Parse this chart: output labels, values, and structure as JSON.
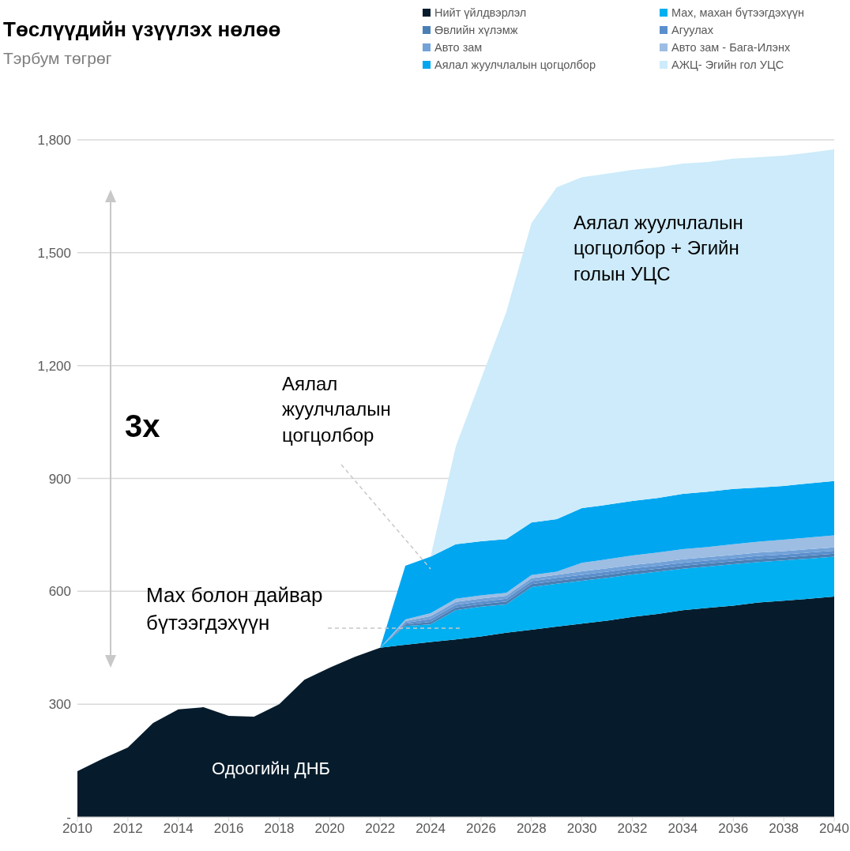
{
  "chart_data": {
    "type": "area",
    "stacked": true,
    "title": "Төслүүдийн үзүүлэх нөлөө",
    "subtitle": "Тэрбум төгрөг",
    "x": [
      2010,
      2011,
      2012,
      2013,
      2014,
      2015,
      2016,
      2017,
      2018,
      2019,
      2020,
      2021,
      2022,
      2023,
      2024,
      2025,
      2026,
      2027,
      2028,
      2029,
      2030,
      2031,
      2032,
      2033,
      2034,
      2035,
      2036,
      2037,
      2038,
      2039,
      2040
    ],
    "series": [
      {
        "name": "Нийт үйлдвэрлэл",
        "color": "#061c2c",
        "values": [
          122,
          155,
          185,
          250,
          286,
          292,
          269,
          267,
          300,
          365,
          397,
          426,
          450,
          458,
          465,
          472,
          480,
          490,
          498,
          506,
          514,
          522,
          532,
          540,
          550,
          556,
          562,
          570,
          575,
          580,
          586
        ]
      },
      {
        "name": "Мах, махан бүтээгдэхүүн",
        "color": "#00b0f0",
        "values": [
          null,
          null,
          null,
          null,
          null,
          null,
          null,
          null,
          null,
          null,
          null,
          null,
          0,
          50,
          47,
          78,
          79,
          75,
          113,
          114,
          114,
          114,
          113,
          112,
          110,
          110,
          110,
          108,
          107,
          107,
          106
        ]
      },
      {
        "name": "Өвлийн хүлэмж",
        "color": "#4a7fb5",
        "values": [
          null,
          null,
          null,
          null,
          null,
          null,
          null,
          null,
          null,
          null,
          null,
          null,
          0,
          4,
          7,
          7,
          7,
          8,
          8,
          8,
          8,
          8,
          8,
          8,
          8,
          8,
          8,
          8,
          8,
          8,
          8
        ]
      },
      {
        "name": "Агуулах",
        "color": "#5b8fcc",
        "values": [
          null,
          null,
          null,
          null,
          null,
          null,
          null,
          null,
          null,
          null,
          null,
          null,
          0,
          4,
          7,
          7,
          7,
          7,
          8,
          8,
          8,
          8,
          8,
          8,
          8,
          8,
          8,
          8,
          8,
          8,
          8
        ]
      },
      {
        "name": "Авто зам",
        "color": "#72a2d8",
        "values": [
          null,
          null,
          null,
          null,
          null,
          null,
          null,
          null,
          null,
          null,
          null,
          null,
          0,
          5,
          8,
          8,
          8,
          8,
          8,
          8,
          9,
          9,
          9,
          9,
          9,
          9,
          9,
          9,
          9,
          9,
          9
        ]
      },
      {
        "name": "Авто зам -  Бага-Илэнх",
        "color": "#9dbde3",
        "values": [
          null,
          null,
          null,
          null,
          null,
          null,
          null,
          null,
          null,
          null,
          null,
          null,
          0,
          4,
          8,
          8,
          8,
          8,
          8,
          8,
          23,
          24,
          25,
          26,
          27,
          27,
          28,
          29,
          30,
          31,
          32
        ]
      },
      {
        "name": "Аялал жуулчлалын цогцолбор",
        "color": "#00a6f0",
        "values": [
          null,
          null,
          null,
          null,
          null,
          null,
          null,
          null,
          null,
          null,
          null,
          null,
          0,
          143,
          150,
          145,
          144,
          143,
          140,
          140,
          145,
          145,
          145,
          145,
          147,
          147,
          147,
          144,
          143,
          144,
          144
        ]
      },
      {
        "name": "АЖЦ- Эгийн гол УЦС",
        "color": "#cdebfa",
        "values": [
          null,
          null,
          null,
          null,
          null,
          null,
          null,
          null,
          null,
          null,
          null,
          null,
          null,
          0,
          0,
          260,
          431,
          603,
          796,
          882,
          880,
          880,
          880,
          879,
          878,
          876,
          878,
          878,
          878,
          879,
          882
        ]
      }
    ],
    "xlim": [
      2010,
      2040
    ],
    "xticks": [
      2010,
      2012,
      2014,
      2016,
      2018,
      2020,
      2022,
      2024,
      2026,
      2028,
      2030,
      2032,
      2034,
      2036,
      2038,
      2040
    ],
    "ylim": [
      0,
      1800
    ],
    "yticks": [
      {
        "value": 0,
        "label": "-"
      },
      {
        "value": 300,
        "label": "300"
      },
      {
        "value": 600,
        "label": "600"
      },
      {
        "value": 900,
        "label": "900"
      },
      {
        "value": 1200,
        "label": "1,200"
      },
      {
        "value": 1500,
        "label": "1,500"
      },
      {
        "value": 1800,
        "label": "1,800"
      }
    ],
    "grid": "y",
    "legend": "top right",
    "annotations": [
      "3x",
      "Аялал жуулчлалын цогцолбор",
      "Мах болон дайвар бүтээгдэхүүн",
      "Аялал жуулчлалын цогцолбор + Эгийн голын УЦС",
      "Одоогийн ДНБ"
    ]
  }
}
